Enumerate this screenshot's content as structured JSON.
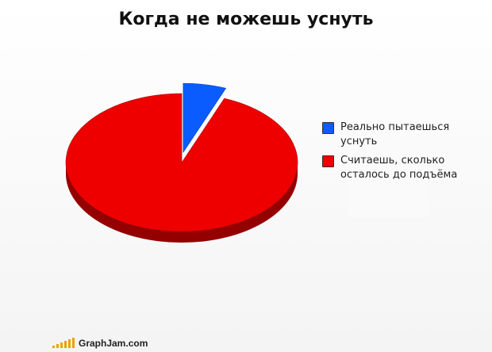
{
  "chart_data": {
    "type": "pie",
    "title": "Когда не можешь уснуть",
    "slices": [
      {
        "label": "Реально пытаешься уснуть",
        "value": 6,
        "color": "#0a5cff",
        "exploded": true
      },
      {
        "label": "Считаешь, сколько осталось до подъёма",
        "value": 94,
        "color": "#ee0000",
        "exploded": false
      }
    ],
    "legend_position": "right",
    "style": "3d"
  },
  "legend": {
    "items": [
      {
        "line1": "Реально пытаешься уснуть",
        "line2": "",
        "color": "#0a5cff"
      },
      {
        "line1": "Считаешь, сколько",
        "line2": "осталось до подъёма",
        "color": "#ee0000"
      }
    ]
  },
  "watermark": {
    "text": "GraphJam.com",
    "bar_color": "#f0a000"
  }
}
